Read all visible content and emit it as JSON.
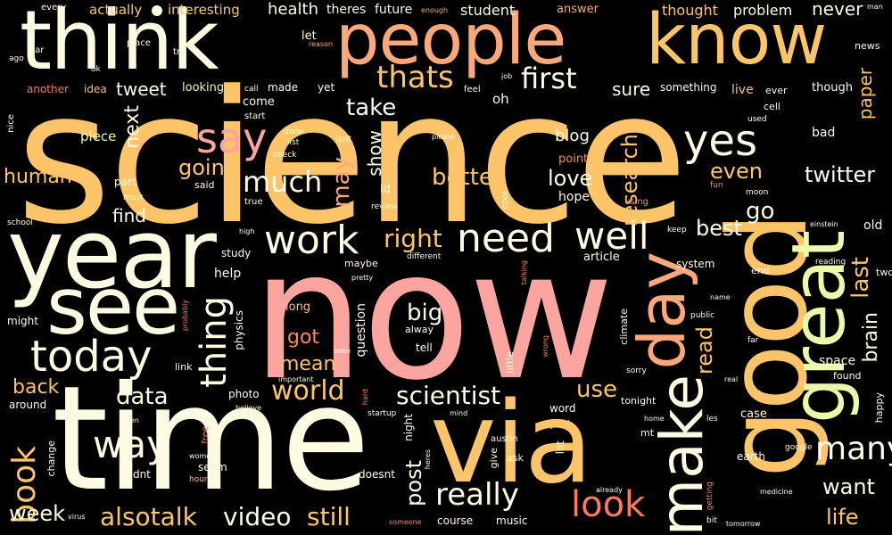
{
  "words": {
    "science": "science",
    "now": "now",
    "time": "time",
    "year": "year",
    "good": "good",
    "think": "think",
    "people": "people",
    "know": "know",
    "via": "via",
    "see": "see",
    "great": "great",
    "day": "day",
    "make": "make",
    "today": "today",
    "yes": "yes",
    "say": "say",
    "work": "work",
    "need": "need",
    "well": "well",
    "way": "way",
    "really": "really",
    "look": "look",
    "thats": "thats",
    "first": "first",
    "much": "much",
    "thing": "thing",
    "world": "world",
    "scientist": "scientist",
    "many": "many",
    "right": "right",
    "book": "book",
    "alsotalk": "alsotalk",
    "video": "video",
    "still": "still",
    "week": "week",
    "life": "life",
    "want": "want",
    "better": "better",
    "take": "take",
    "may": "may",
    "going": "going",
    "love": "love",
    "research": "research",
    "even": "even",
    "twitter": "twitter",
    "go": "go",
    "best": "best",
    "last": "last",
    "brain": "brain",
    "read": "read",
    "data": "data",
    "mean": "mean",
    "got": "got",
    "big": "big",
    "use": "use",
    "post": "post",
    "human": "human",
    "tweet": "tweet",
    "next": "next",
    "find": "find",
    "back": "back",
    "paper": "paper",
    "sure": "sure",
    "show": "show",
    "blog": "blog",
    "health": "health",
    "never": "never",
    "thought": "thought",
    "problem": "problem",
    "actually": "actually",
    "interesting": "interesting",
    "theres": "theres",
    "future": "future",
    "student": "student",
    "answer": "answer",
    "piece": "piece",
    "come": "come",
    "made": "made",
    "yet": "yet",
    "let": "let",
    "idea": "idea",
    "looking": "looking",
    "another": "another",
    "something": "something",
    "live": "live",
    "ever": "ever",
    "though": "though",
    "oh": "oh",
    "cell": "cell",
    "bad": "bad",
    "point": "point",
    "hope": "hope",
    "part": "part",
    "said": "said",
    "id": "id",
    "story": "story",
    "article": "article",
    "system": "system",
    "end": "end",
    "help": "help",
    "study": "study",
    "maybe": "maybe",
    "long": "long",
    "question": "question",
    "physics": "physics",
    "tell": "tell",
    "alway": "alway",
    "climate": "climate",
    "little": "little",
    "space": "space",
    "found": "found",
    "photo": "photo",
    "link": "link",
    "might": "might",
    "around": "around",
    "word": "word",
    "tonight": "tonight",
    "mt": "mt",
    "case": "case",
    "earth": "earth",
    "happy": "happy",
    "two": "two",
    "old": "old",
    "night": "night",
    "didnt": "didnt",
    "doesnt": "doesnt",
    "seem": "seem",
    "change": "change",
    "course": "course",
    "music": "music",
    "give": "give",
    "ask": "ask",
    "yeah": "yeah",
    "lot": "lot",
    "every": "every",
    "star": "star",
    "place": "place",
    "try": "try",
    "ago": "ago",
    "ok": "ok",
    "nice": "nice",
    "call": "call",
    "start": "start",
    "done": "done",
    "list": "list",
    "check": "check",
    "isnt": "isnt",
    "feel": "feel",
    "job": "job",
    "please": "please",
    "reason": "reason",
    "enough": "enough",
    "man": "man",
    "news": "news",
    "used": "used",
    "fun": "fun",
    "moon": "moon",
    "keep": "keep",
    "einstein": "einstein",
    "must": "must",
    "true": "true",
    "review": "review",
    "cool": "cool",
    "using": "using",
    "school": "school",
    "high": "high",
    "different": "different",
    "talking": "talking",
    "pretty": "pretty",
    "reading": "reading",
    "name": "name",
    "public": "public",
    "far": "far",
    "real": "real",
    "probably": "probably",
    "seen": "seen",
    "important": "important",
    "wrong": "wrong",
    "sorry": "sorry",
    "hard": "hard",
    "believe": "believe",
    "startup": "startup",
    "mind": "mind",
    "les": "les",
    "home": "home",
    "open": "open",
    "free": "free",
    "women": "women",
    "hour": "hour",
    "austin": "austin",
    "heres": "heres",
    "already": "already",
    "getting": "getting",
    "google": "google",
    "medicine": "medicine",
    "virus": "virus",
    "someone": "someone",
    "bit": "bit",
    "tomorrow": "tomorrow"
  },
  "palette": {
    "background": "#000000",
    "gold": "#fdc46a",
    "cream": "#fffbe3",
    "peach": "#fca87a",
    "pink": "#fca4a0",
    "lime": "#eafcaa",
    "orange": "#fb8a52",
    "salmon": "#fb7a5c"
  }
}
